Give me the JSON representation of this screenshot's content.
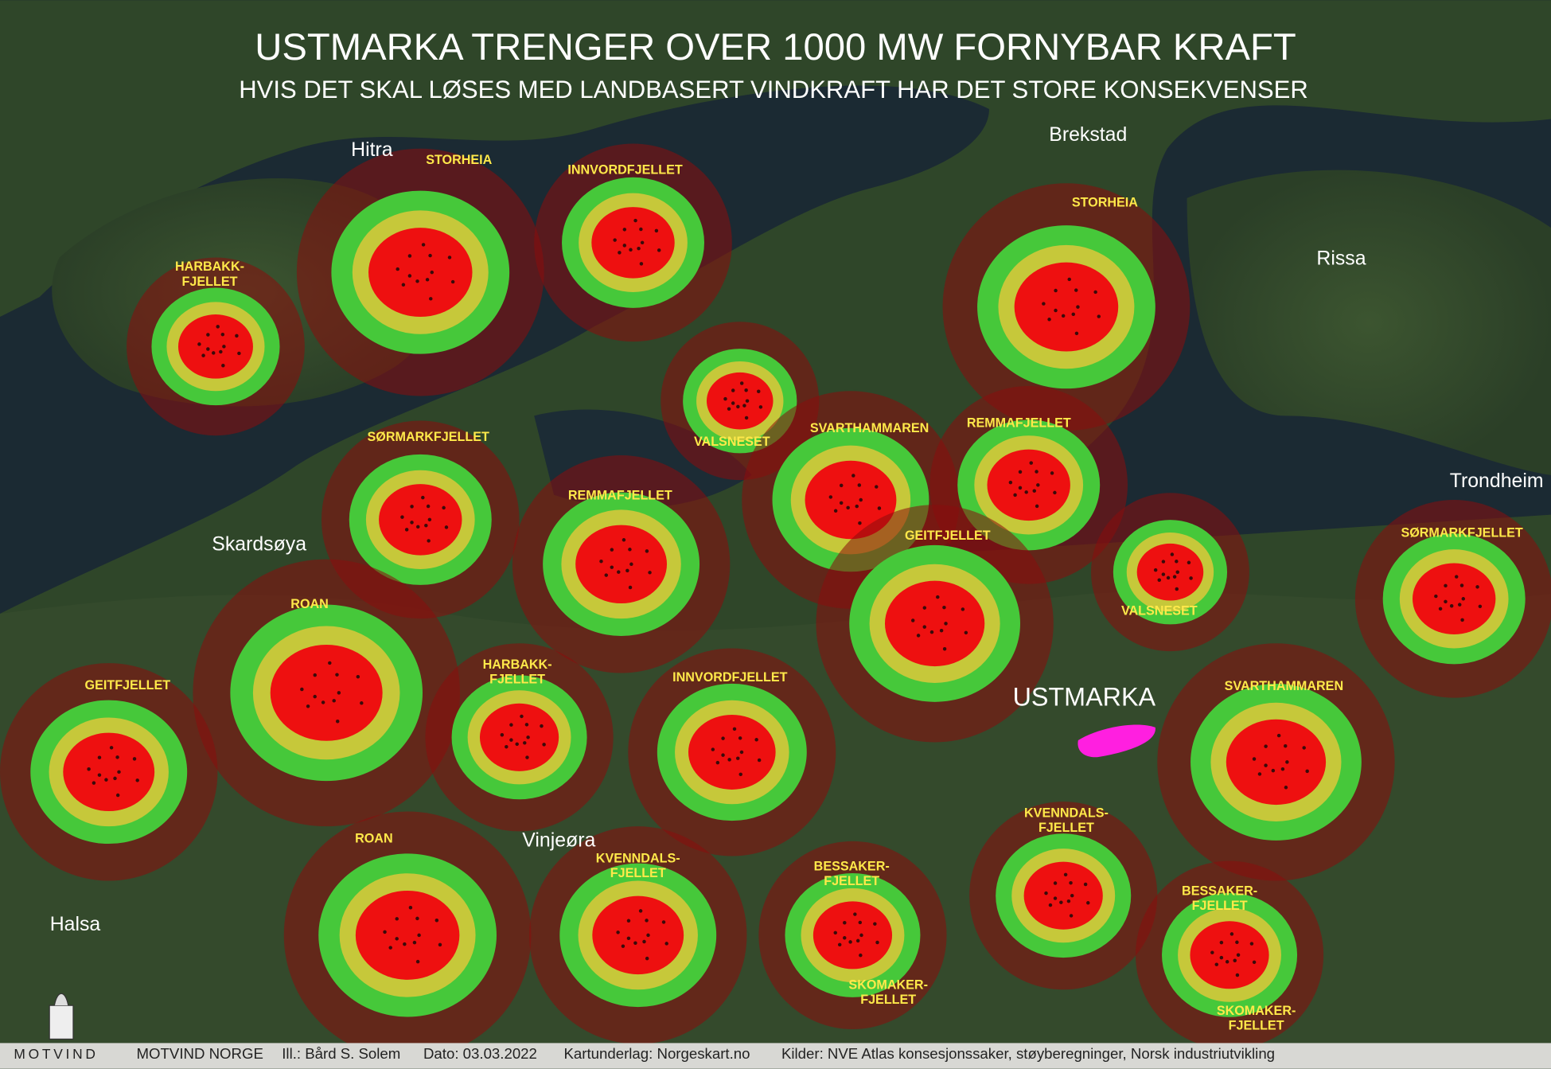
{
  "header": {
    "title": "USTMARKA TRENGER OVER 1000 MW FORNYBAR KRAFT",
    "subtitle": "HVIS DET SKAL LØSES MED LANDBASERT VINDKRAFT HAR DET STORE KONSEKVENSER"
  },
  "places": [
    "Hitra",
    "Brekstad",
    "Rissa",
    "Trondheim",
    "Skardsøya",
    "Vinjeøra",
    "Halsa",
    "USTMARKA"
  ],
  "farm_labels": [
    {
      "lines": [
        "STORHEIA"
      ]
    },
    {
      "lines": [
        "INNVORDFJELLET"
      ]
    },
    {
      "lines": [
        "HARBAKK-",
        "FJELLET"
      ]
    },
    {
      "lines": [
        "STORHEIA"
      ]
    },
    {
      "lines": [
        "VALSNESET"
      ]
    },
    {
      "lines": [
        "SØRMARKFJELLET"
      ]
    },
    {
      "lines": [
        "REMMAFJELLET"
      ]
    },
    {
      "lines": [
        "SVARTHAMMAREN"
      ]
    },
    {
      "lines": [
        "REMMAFJELLET"
      ]
    },
    {
      "lines": [
        "GEITFJELLET"
      ]
    },
    {
      "lines": [
        "VALSNESET"
      ]
    },
    {
      "lines": [
        "SØRMARKFJELLET"
      ]
    },
    {
      "lines": [
        "ROAN"
      ]
    },
    {
      "lines": [
        "HARBAKK-",
        "FJELLET"
      ]
    },
    {
      "lines": [
        "INNVORDFJELLET"
      ]
    },
    {
      "lines": [
        "GEITFJELLET"
      ]
    },
    {
      "lines": [
        "SVARTHAMMAREN"
      ]
    },
    {
      "lines": [
        "ROAN"
      ]
    },
    {
      "lines": [
        "KVENNDALS-",
        "FJELLET"
      ]
    },
    {
      "lines": [
        "BESSAKER-",
        "FJELLET"
      ]
    },
    {
      "lines": [
        "SKOMAKER-",
        "FJELLET"
      ]
    },
    {
      "lines": [
        "KVENNDALS-",
        "FJELLET"
      ]
    },
    {
      "lines": [
        "BESSAKER-",
        "FJELLET"
      ]
    },
    {
      "lines": [
        "SKOMAKER-",
        "FJELLET"
      ]
    }
  ],
  "footer": {
    "logo": "MOTVIND",
    "items": [
      "MOTVIND NORGE",
      "Ill.: Bård S. Solem",
      "Dato: 03.03.2022",
      "Kartunderlag: Norgeskart.no",
      "Kilder: NVE Atlas konsesjonssaker, støyberegninger, Norsk industriutvikling"
    ]
  }
}
